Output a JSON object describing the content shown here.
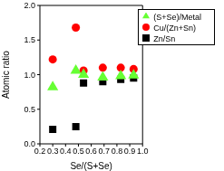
{
  "chart_data": {
    "type": "scatter",
    "x_label": "Se/(S+Se)",
    "y_label": "Atomic ratio",
    "x": [
      0.3,
      0.48,
      0.54,
      0.69,
      0.83,
      0.93
    ],
    "series": [
      {
        "name": "Zn/Sn",
        "color": "#000000",
        "marker": "square",
        "values": [
          0.21,
          0.25,
          0.88,
          0.9,
          0.93,
          0.95
        ]
      },
      {
        "name": "Cu/(Zn+Sn)",
        "color": "#ff0000",
        "marker": "circle",
        "values": [
          1.22,
          1.68,
          1.06,
          1.1,
          1.1,
          1.08
        ]
      },
      {
        "name": "(S+Se)/Metal",
        "color": "#66ff33",
        "marker": "triangle",
        "values": [
          0.82,
          1.06,
          1.0,
          0.96,
          0.98,
          0.99
        ]
      }
    ],
    "xlim": [
      0.2,
      1.0
    ],
    "xticks": [
      0.2,
      0.3,
      0.4,
      0.5,
      0.6,
      0.7,
      0.8,
      0.9,
      {
        "value": 1.0,
        "label": "1.0"
      }
    ],
    "ylim": [
      0.0,
      2.0
    ],
    "yticks": [
      {
        "value": 0,
        "label": "0.0"
      },
      0.5,
      {
        "value": 1.0,
        "label": "1.0"
      },
      1.5,
      {
        "value": 2.0,
        "label": "2.0"
      }
    ],
    "grid": false,
    "legend": "upper right"
  }
}
